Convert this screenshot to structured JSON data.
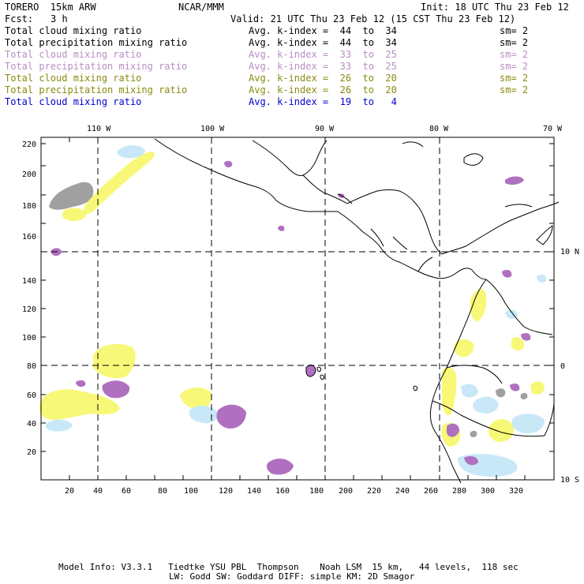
{
  "header": {
    "model": "TORERO  15km ARW",
    "org": "NCAR/MMM",
    "init": "Init: 18 UTC Thu 23 Feb 12",
    "fcst_label": "Fcst:",
    "fcst_value": "3 h",
    "valid": "Valid: 21 UTC Thu 23 Feb 12 (15 CST Thu 23 Feb 12)"
  },
  "legend_rows": [
    {
      "field": "Total cloud mixing ratio",
      "kindex": "Avg. k-index =  44  to  34",
      "sm": "sm= 2",
      "color": "#000000"
    },
    {
      "field": "Total precipitation mixing ratio",
      "kindex": "Avg. k-index =  44  to  34",
      "sm": "sm= 2",
      "color": "#000000"
    },
    {
      "field": "Total cloud mixing ratio",
      "kindex": "Avg. k-index =  33  to  25",
      "sm": "sm= 2",
      "color": "#b88ec4"
    },
    {
      "field": "Total precipitation mixing ratio",
      "kindex": "Avg. k-index =  33  to  25",
      "sm": "sm= 2",
      "color": "#b88ec4"
    },
    {
      "field": "Total cloud mixing ratio",
      "kindex": "Avg. k-index =  26  to  20",
      "sm": "sm= 2",
      "color": "#8a8a10"
    },
    {
      "field": "Total precipitation mixing ratio",
      "kindex": "Avg. k-index =  26  to  20",
      "sm": "sm= 2",
      "color": "#8a8a10"
    },
    {
      "field": "Total cloud mixing ratio",
      "kindex": "Avg. k-index =  19  to   4",
      "sm": "",
      "color": "#0000d0"
    }
  ],
  "map": {
    "top_lon_labels": [
      "110 W",
      "100 W",
      "90 W",
      "80 W",
      "70 W"
    ],
    "right_lat_labels": [
      "10 N",
      "0",
      "10 S"
    ],
    "y_ticks": [
      "20",
      "40",
      "60",
      "80",
      "100",
      "120",
      "140",
      "160",
      "180",
      "200",
      "220"
    ],
    "x_ticks": [
      "20",
      "40",
      "60",
      "80",
      "100",
      "120",
      "140",
      "160",
      "180",
      "200",
      "220",
      "240",
      "260",
      "280",
      "300",
      "320"
    ],
    "colors": {
      "gray": "#a0a0a0",
      "purple": "#b070c0",
      "yellow": "#f8f878",
      "lightblue": "#c8e8f8"
    }
  },
  "footer": {
    "line1": "Model Info: V3.3.1   Tiedtke YSU PBL  Thompson    Noah LSM  15 km,   44 levels,  118 sec",
    "line2": "LW: Godd SW: Goddard DIFF: simple KM: 2D Smagor"
  }
}
